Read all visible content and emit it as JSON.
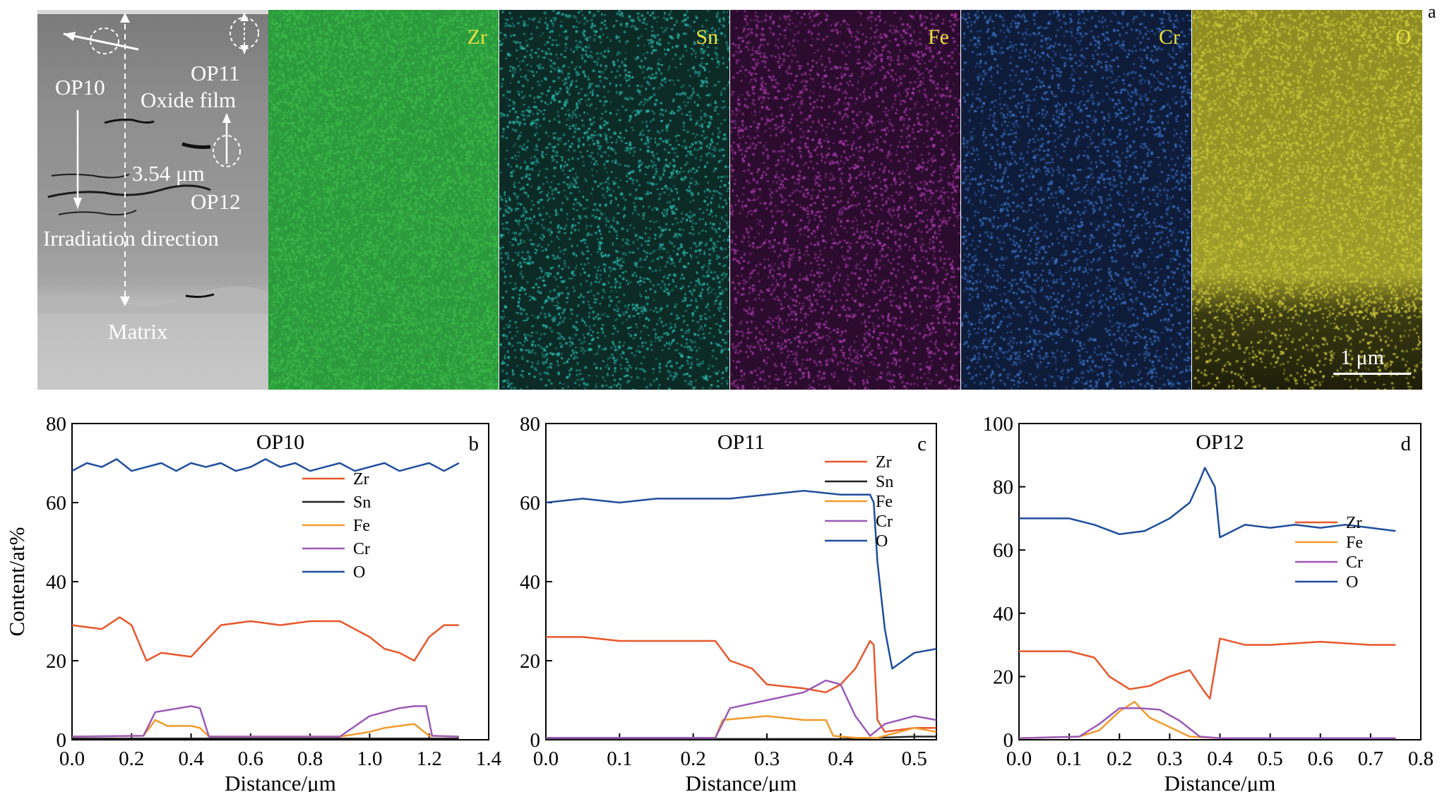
{
  "panel_letter_a": "a",
  "sem": {
    "labels": {
      "op10": "OP10",
      "op11": "OP11",
      "oxide_film": "Oxide film",
      "op12": "OP12",
      "thickness": "3.54 μm",
      "irradiation": "Irradiation direction",
      "matrix": "Matrix"
    }
  },
  "maps": [
    {
      "element": "Zr",
      "color": "#3cb94a"
    },
    {
      "element": "Sn",
      "color": "#2ab7a9"
    },
    {
      "element": "Fe",
      "color": "#a43aa8"
    },
    {
      "element": "Cr",
      "color": "#3a6fc1"
    },
    {
      "element": "O",
      "color": "#c9c53c"
    }
  ],
  "scale_bar": "1 μm",
  "colors": {
    "Zr": "#e8572b",
    "Sn": "#222222",
    "Fe": "#f39a2b",
    "Cr": "#9b59b6",
    "O": "#1f4e9c"
  },
  "chart_data": [
    {
      "type": "line",
      "panel": "b",
      "title": "OP10",
      "xlabel": "Distance/μm",
      "ylabel": "Content/at%",
      "xlim": [
        0.0,
        1.4
      ],
      "ylim": [
        0,
        80
      ],
      "xticks": [
        "0.0",
        "0.2",
        "0.4",
        "0.6",
        "0.8",
        "1.0",
        "1.2",
        "1.4"
      ],
      "yticks": [
        "0",
        "20",
        "40",
        "60",
        "80"
      ],
      "legend": [
        "Zr",
        "Sn",
        "Fe",
        "Cr",
        "O"
      ],
      "series": [
        {
          "name": "Zr",
          "x": [
            0.0,
            0.1,
            0.16,
            0.2,
            0.25,
            0.3,
            0.4,
            0.45,
            0.5,
            0.6,
            0.7,
            0.8,
            0.9,
            0.95,
            1.0,
            1.05,
            1.1,
            1.15,
            1.2,
            1.25,
            1.3
          ],
          "y": [
            29,
            28,
            31,
            29,
            20,
            22,
            21,
            25,
            29,
            30,
            29,
            30,
            30,
            28,
            26,
            23,
            22,
            20,
            26,
            29,
            29
          ]
        },
        {
          "name": "Sn",
          "x": [
            0.0,
            0.3,
            0.6,
            0.9,
            1.3
          ],
          "y": [
            0.3,
            0.3,
            0.3,
            0.3,
            0.3
          ]
        },
        {
          "name": "Fe",
          "x": [
            0.0,
            0.24,
            0.28,
            0.32,
            0.4,
            0.43,
            0.46,
            0.9,
            1.0,
            1.05,
            1.1,
            1.15,
            1.2,
            1.3
          ],
          "y": [
            0.8,
            1,
            5,
            3.5,
            3.5,
            3,
            0.8,
            0.8,
            2,
            3,
            3.5,
            4,
            1,
            0.8
          ]
        },
        {
          "name": "Cr",
          "x": [
            0.0,
            0.24,
            0.28,
            0.32,
            0.4,
            0.43,
            0.46,
            0.9,
            1.0,
            1.05,
            1.1,
            1.15,
            1.19,
            1.21,
            1.3
          ],
          "y": [
            0.8,
            1,
            7,
            7.5,
            8.5,
            8,
            0.8,
            0.8,
            6,
            7,
            8,
            8.5,
            8.5,
            1,
            0.8
          ]
        },
        {
          "name": "O",
          "x": [
            0.0,
            0.05,
            0.1,
            0.15,
            0.2,
            0.25,
            0.3,
            0.35,
            0.4,
            0.45,
            0.5,
            0.55,
            0.6,
            0.65,
            0.7,
            0.75,
            0.8,
            0.85,
            0.9,
            0.95,
            1.0,
            1.05,
            1.1,
            1.15,
            1.2,
            1.25,
            1.3
          ],
          "y": [
            68,
            70,
            69,
            71,
            68,
            69,
            70,
            68,
            70,
            69,
            70,
            68,
            69,
            71,
            69,
            70,
            68,
            69,
            70,
            68,
            69,
            70,
            68,
            69,
            70,
            68,
            70
          ]
        }
      ]
    },
    {
      "type": "line",
      "panel": "c",
      "title": "OP11",
      "xlabel": "Distance/μm",
      "ylabel": "",
      "xlim": [
        0.0,
        0.53
      ],
      "ylim": [
        0,
        80
      ],
      "xticks": [
        "0.0",
        "0.1",
        "0.2",
        "0.3",
        "0.4",
        "0.5"
      ],
      "yticks": [
        "0",
        "20",
        "40",
        "60",
        "80"
      ],
      "legend": [
        "Zr",
        "Sn",
        "Fe",
        "Cr",
        "O"
      ],
      "series": [
        {
          "name": "Zr",
          "x": [
            0.0,
            0.05,
            0.1,
            0.15,
            0.2,
            0.23,
            0.25,
            0.28,
            0.3,
            0.35,
            0.38,
            0.4,
            0.42,
            0.44,
            0.445,
            0.45,
            0.46,
            0.5,
            0.53
          ],
          "y": [
            26,
            26,
            25,
            25,
            25,
            25,
            20,
            18,
            14,
            13,
            12,
            14,
            18,
            25,
            24,
            5,
            2,
            3,
            3
          ]
        },
        {
          "name": "Sn",
          "x": [
            0.0,
            0.2,
            0.4,
            0.45,
            0.5,
            0.53
          ],
          "y": [
            0.2,
            0.2,
            0.2,
            0.5,
            0.8,
            0.8
          ]
        },
        {
          "name": "Fe",
          "x": [
            0.0,
            0.2,
            0.23,
            0.24,
            0.3,
            0.35,
            0.38,
            0.39,
            0.42,
            0.45,
            0.5,
            0.53
          ],
          "y": [
            0.5,
            0.5,
            0.5,
            5,
            6,
            5,
            5,
            1,
            0.5,
            0.5,
            3,
            2
          ]
        },
        {
          "name": "Cr",
          "x": [
            0.0,
            0.2,
            0.23,
            0.25,
            0.3,
            0.35,
            0.38,
            0.4,
            0.42,
            0.44,
            0.46,
            0.5,
            0.53
          ],
          "y": [
            0.5,
            0.5,
            0.5,
            8,
            10,
            12,
            15,
            14,
            6,
            1,
            4,
            6,
            5
          ]
        },
        {
          "name": "O",
          "x": [
            0.0,
            0.05,
            0.1,
            0.15,
            0.2,
            0.25,
            0.3,
            0.35,
            0.4,
            0.44,
            0.445,
            0.45,
            0.46,
            0.47,
            0.5,
            0.53
          ],
          "y": [
            60,
            61,
            60,
            61,
            61,
            61,
            62,
            63,
            62,
            62,
            60,
            45,
            28,
            18,
            22,
            23
          ]
        }
      ]
    },
    {
      "type": "line",
      "panel": "d",
      "title": "OP12",
      "xlabel": "Distance/μm",
      "ylabel": "",
      "xlim": [
        0.0,
        0.8
      ],
      "ylim": [
        0,
        100
      ],
      "xticks": [
        "0.0",
        "0.1",
        "0.2",
        "0.3",
        "0.4",
        "0.5",
        "0.6",
        "0.7",
        "0.8"
      ],
      "yticks": [
        "0",
        "20",
        "40",
        "60",
        "80",
        "100"
      ],
      "legend": [
        "Zr",
        "Fe",
        "Cr",
        "O"
      ],
      "series": [
        {
          "name": "Zr",
          "x": [
            0.0,
            0.1,
            0.15,
            0.18,
            0.22,
            0.26,
            0.3,
            0.34,
            0.37,
            0.38,
            0.4,
            0.45,
            0.5,
            0.6,
            0.7,
            0.75
          ],
          "y": [
            28,
            28,
            26,
            20,
            16,
            17,
            20,
            22,
            15,
            13,
            32,
            30,
            30,
            31,
            30,
            30
          ]
        },
        {
          "name": "Fe",
          "x": [
            0.0,
            0.12,
            0.16,
            0.2,
            0.23,
            0.26,
            0.3,
            0.34,
            0.4,
            0.5,
            0.75
          ],
          "y": [
            0.5,
            1,
            3,
            9,
            12,
            7,
            4,
            1,
            0.5,
            0.5,
            0.5
          ]
        },
        {
          "name": "Cr",
          "x": [
            0.0,
            0.12,
            0.16,
            0.2,
            0.24,
            0.28,
            0.32,
            0.36,
            0.4,
            0.5,
            0.75
          ],
          "y": [
            0.5,
            1,
            5,
            10,
            10,
            9.5,
            6,
            1,
            0.5,
            0.5,
            0.5
          ]
        },
        {
          "name": "O",
          "x": [
            0.0,
            0.05,
            0.1,
            0.15,
            0.2,
            0.25,
            0.3,
            0.34,
            0.36,
            0.37,
            0.39,
            0.4,
            0.45,
            0.5,
            0.55,
            0.6,
            0.65,
            0.7,
            0.75
          ],
          "y": [
            70,
            70,
            70,
            68,
            65,
            66,
            70,
            75,
            82,
            86,
            80,
            64,
            68,
            67,
            68,
            67,
            68,
            67,
            66
          ]
        }
      ]
    }
  ]
}
